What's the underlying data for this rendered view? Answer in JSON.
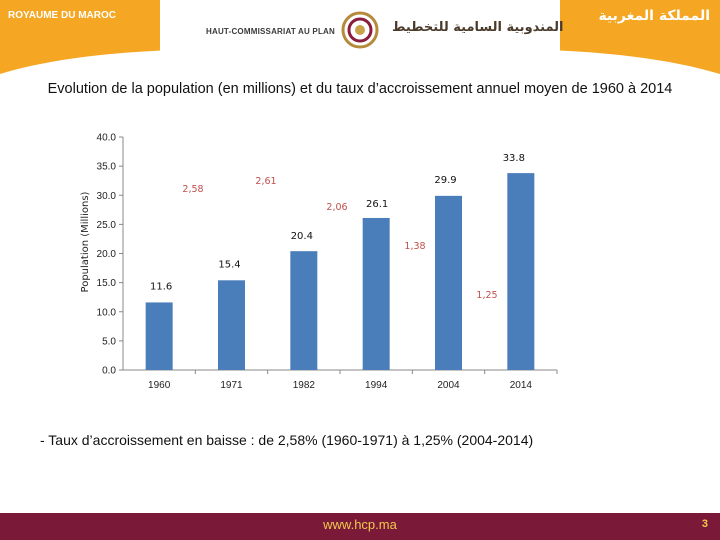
{
  "header": {
    "kingdom_fr": "ROYAUME DU MAROC",
    "kingdom_ar": "المملكة المغربية",
    "hcp_fr": "HAUT-COMMISSARIAT AU PLAN",
    "hcp_ar": "المندوبية السامية للتخطيط"
  },
  "colors": {
    "banner": "#f5a623",
    "bar": "#4a7ebb",
    "rate_label": "#c0504d",
    "footer": "#7a1a38",
    "footer_text": "#f2c94c"
  },
  "chart_data": {
    "type": "bar",
    "title": "Evolution de la population (en millions) et du taux d’accroissement annuel moyen de 1960 à 2014",
    "ylabel": "Population (Millions)",
    "xlabel": "",
    "ylim": [
      0,
      40
    ],
    "yticks": [
      "0.0",
      "5.0",
      "10.0",
      "15.0",
      "20.0",
      "25.0",
      "30.0",
      "35.0",
      "40.0"
    ],
    "categories": [
      "1960",
      "1971",
      "1982",
      "1994",
      "2004",
      "2014"
    ],
    "values": [
      11.6,
      15.4,
      20.4,
      26.1,
      29.9,
      33.8
    ],
    "value_labels": [
      "11.6",
      "15.4",
      "20.4",
      "26.1",
      "29.9",
      "33.8"
    ],
    "growth_rate_labels": [
      "2,58",
      "2,61",
      "2,06",
      "1,38",
      "1,25"
    ]
  },
  "bullet": "-  Taux d’accroissement en baisse : de 2,58% (1960-1971)  à 1,25% (2004-2014)",
  "footer": {
    "url": "www.hcp.ma",
    "page": "3"
  }
}
